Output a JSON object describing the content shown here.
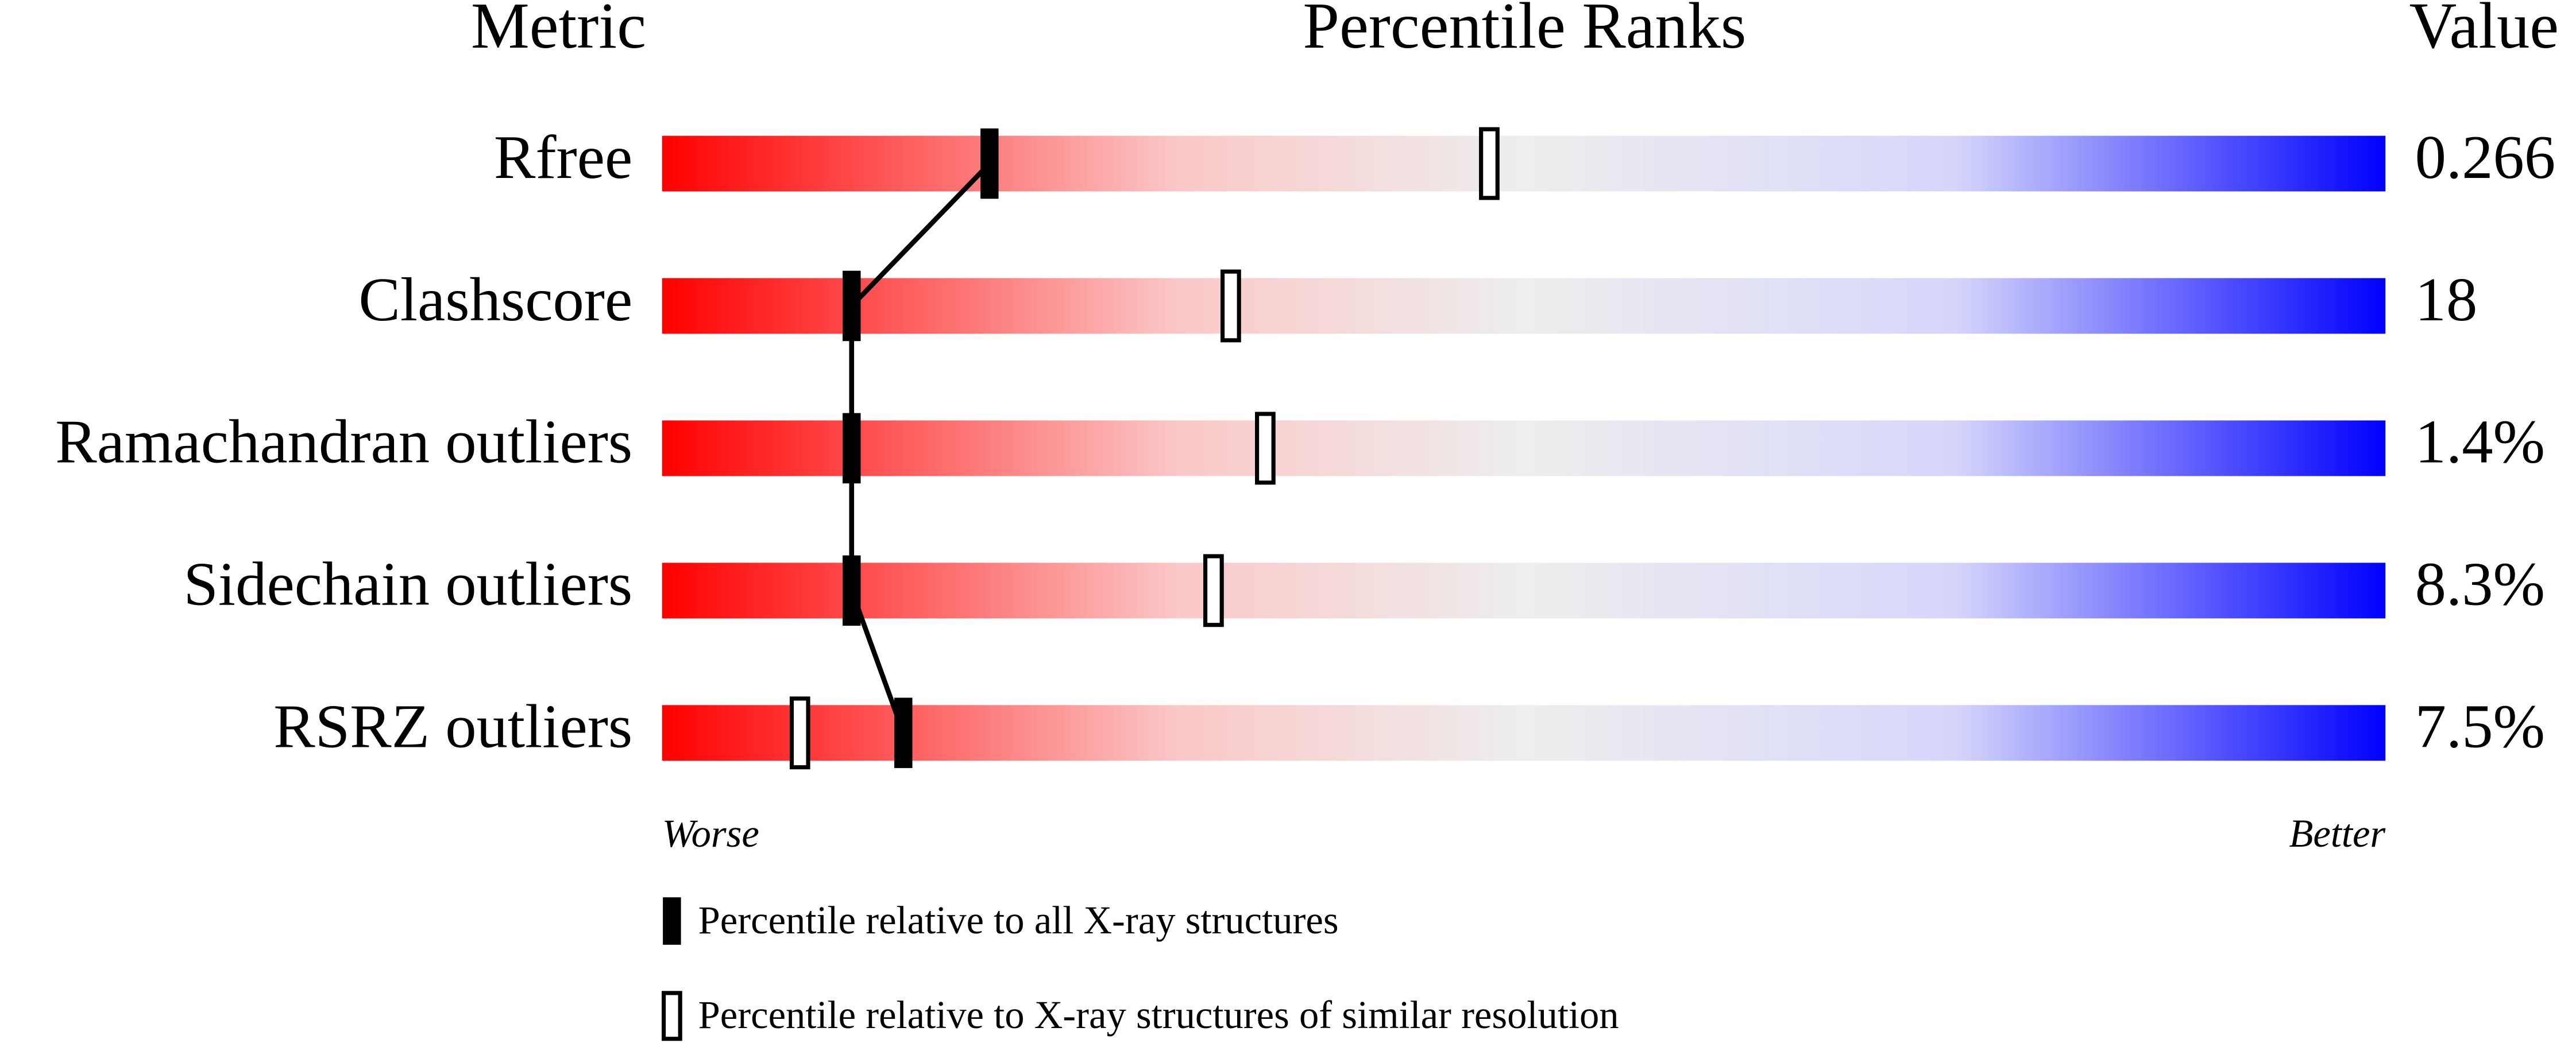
{
  "chart_data": {
    "type": "percentile-slider",
    "column_headers": [
      "Metric",
      "Percentile Ranks",
      "Value"
    ],
    "categories": [
      "Rfree",
      "Clashscore",
      "Ramachandran outliers",
      "Sidechain outliers",
      "RSRZ outliers"
    ],
    "metric_values": [
      "0.266",
      "18",
      "1.4%",
      "8.3%",
      "7.5%"
    ],
    "xlim": [
      0,
      100
    ],
    "axis_labels": [
      "Worse",
      "Better"
    ],
    "series": [
      {
        "name": "Percentile relative to all X-ray structures",
        "color": "#000000",
        "values": [
          19,
          11,
          11,
          11,
          14
        ]
      },
      {
        "name": "Percentile relative to X-ray structures of similar resolution",
        "color": "#ffffff",
        "values": [
          48,
          33,
          35,
          32,
          8
        ]
      }
    ]
  }
}
